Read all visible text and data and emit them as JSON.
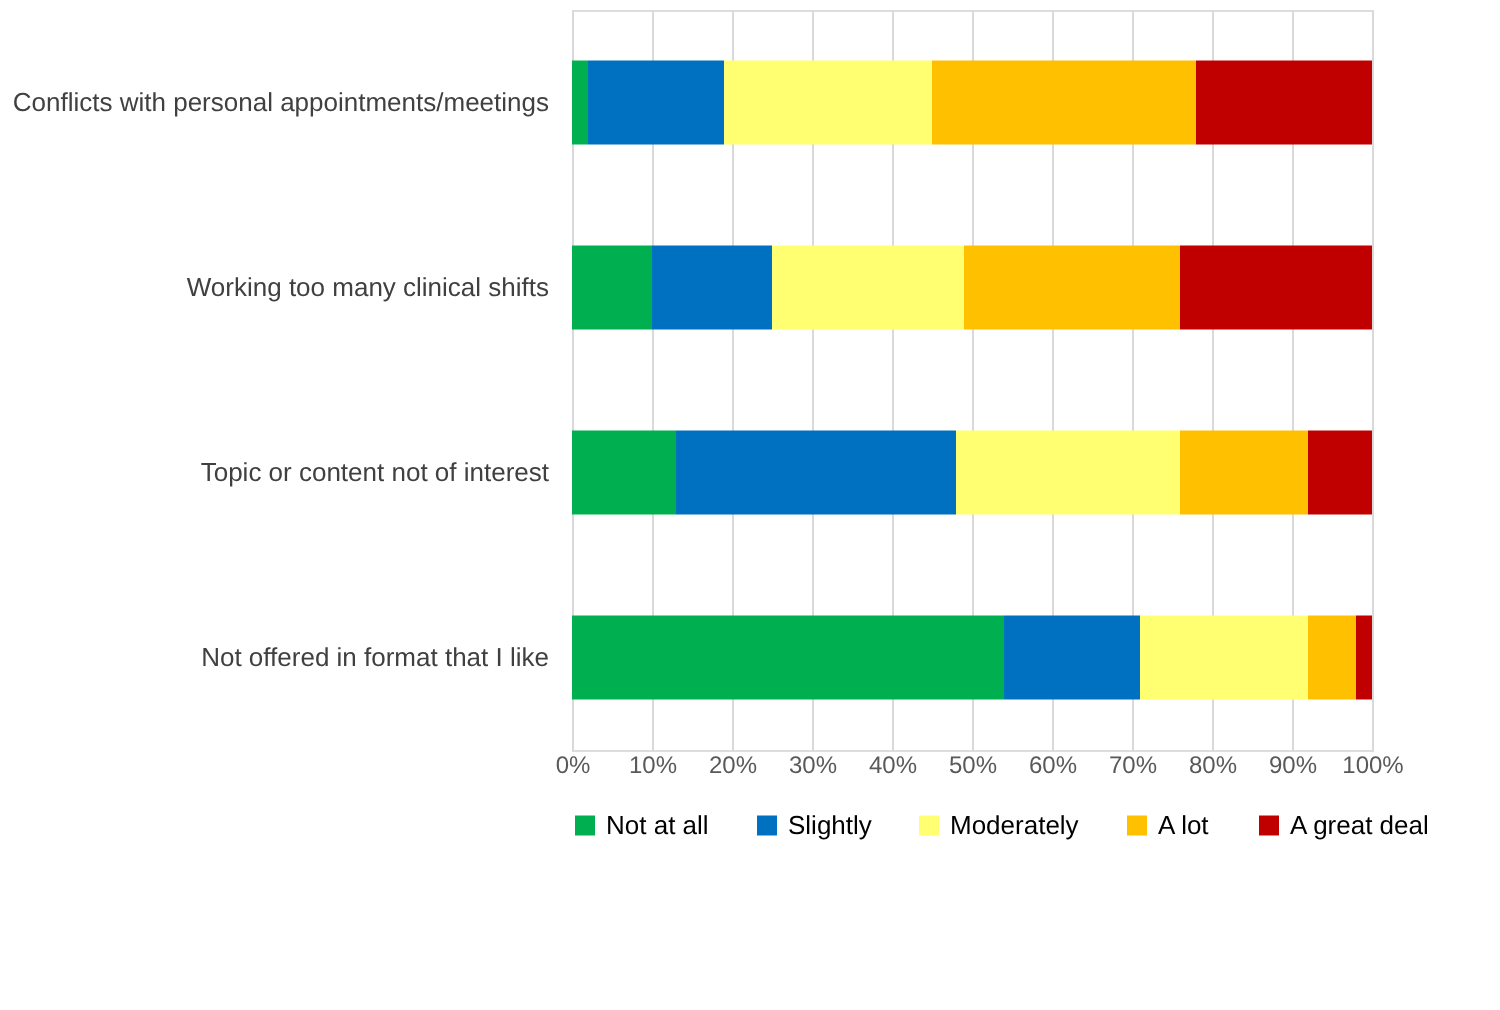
{
  "chart_data": {
    "type": "bar",
    "orientation": "horizontal",
    "stacked": true,
    "categories": [
      "Conflicts with personal appointments/meetings",
      "Working too many clinical shifts",
      "Topic or content not of interest",
      "Not offered in format that I like"
    ],
    "series": [
      {
        "name": "Not at all",
        "color": "#00b050",
        "values": [
          2,
          10,
          13,
          54
        ]
      },
      {
        "name": "Slightly",
        "color": "#0070c0",
        "values": [
          17,
          15,
          35,
          17
        ]
      },
      {
        "name": "Moderately",
        "color": "#ffff71",
        "values": [
          26,
          24,
          28,
          21
        ]
      },
      {
        "name": "A lot",
        "color": "#ffc000",
        "values": [
          33,
          27,
          16,
          6
        ]
      },
      {
        "name": "A great deal",
        "color": "#c00000",
        "values": [
          22,
          24,
          8,
          2
        ]
      }
    ],
    "xlim": [
      0,
      100
    ],
    "xticks": [
      {
        "value": 0,
        "label": "0%"
      },
      {
        "value": 10,
        "label": "10%"
      },
      {
        "value": 20,
        "label": "20%"
      },
      {
        "value": 30,
        "label": "30%"
      },
      {
        "value": 40,
        "label": "40%"
      },
      {
        "value": 50,
        "label": "50%"
      },
      {
        "value": 60,
        "label": "60%"
      },
      {
        "value": 70,
        "label": "70%"
      },
      {
        "value": 80,
        "label": "80%"
      },
      {
        "value": 90,
        "label": "90%"
      },
      {
        "value": 100,
        "label": "100%"
      }
    ],
    "grid": "x",
    "legend": "bottom"
  }
}
